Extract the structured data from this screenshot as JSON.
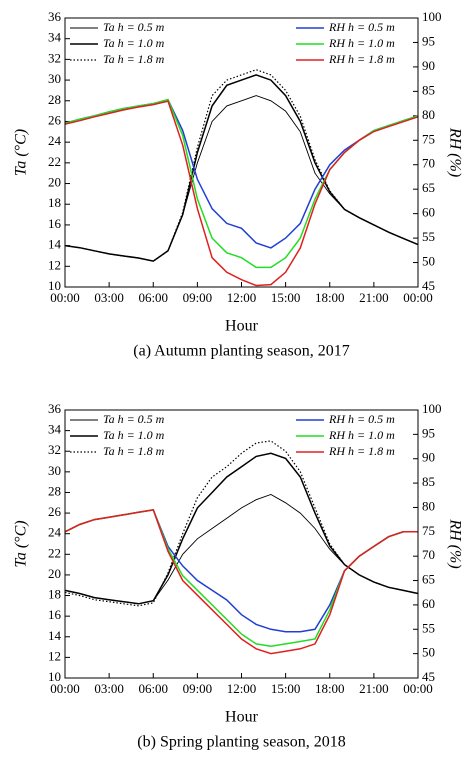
{
  "chart_data": [
    {
      "type": "line",
      "caption": "(a) Autumn planting season, 2017",
      "xlabel": "Hour",
      "ylabel": "Ta (°C)",
      "y2label": "RH (%)",
      "x": [
        0,
        1,
        2,
        3,
        4,
        5,
        6,
        7,
        8,
        9,
        10,
        11,
        12,
        13,
        14,
        15,
        16,
        17,
        18,
        19,
        20,
        21,
        22,
        23,
        24
      ],
      "xlim": [
        0,
        24
      ],
      "xticks": [
        {
          "value": 0,
          "label": "00:00"
        },
        {
          "value": 3,
          "label": "03:00"
        },
        {
          "value": 6,
          "label": "06:00"
        },
        {
          "value": 9,
          "label": "09:00"
        },
        {
          "value": 12,
          "label": "12:00"
        },
        {
          "value": 15,
          "label": "15:00"
        },
        {
          "value": 18,
          "label": "18:00"
        },
        {
          "value": 21,
          "label": "21:00"
        },
        {
          "value": 24,
          "label": "00:00"
        }
      ],
      "ylim": [
        10,
        36
      ],
      "yticks": [
        10,
        12,
        14,
        16,
        18,
        20,
        22,
        24,
        26,
        28,
        30,
        32,
        34,
        36
      ],
      "y2lim": [
        45,
        100
      ],
      "y2ticks": [
        45,
        50,
        55,
        60,
        65,
        70,
        75,
        80,
        85,
        90,
        95,
        100
      ],
      "series": [
        {
          "name": "Ta h = 0.5 m",
          "color": "#000000",
          "line_style": "thin",
          "values": [
            14,
            13.8,
            13.5,
            13.2,
            13,
            12.8,
            12.5,
            13.5,
            17,
            22,
            26,
            27.5,
            28,
            28.5,
            28,
            27,
            25,
            21,
            19,
            17.5,
            16.7,
            16,
            15.3,
            14.7,
            14.1
          ]
        },
        {
          "name": "Ta h = 1.0 m",
          "color": "#000000",
          "line_style": "solid",
          "values": [
            14,
            13.8,
            13.5,
            13.2,
            13,
            12.8,
            12.5,
            13.5,
            17,
            23,
            27.5,
            29.5,
            30,
            30.5,
            30,
            28.5,
            26,
            22,
            19.2,
            17.5,
            16.7,
            16,
            15.3,
            14.7,
            14.1
          ]
        },
        {
          "name": "Ta h = 1.8 m",
          "color": "#000000",
          "line_style": "dotted",
          "values": [
            14,
            13.8,
            13.5,
            13.2,
            13,
            12.8,
            12.5,
            13.5,
            17.2,
            23.5,
            28.5,
            30,
            30.5,
            31,
            30.5,
            29,
            26.5,
            22.3,
            19.3,
            17.5,
            16.7,
            16,
            15.3,
            14.7,
            14.1
          ]
        },
        {
          "name": "RH h = 0.5 m",
          "color": "#1f3fd6",
          "line_style": "solid",
          "axis": "y2",
          "values": [
            78.5,
            79.3,
            80,
            80.8,
            81.5,
            82,
            82.5,
            83.3,
            77,
            67,
            61,
            58,
            57,
            54,
            53,
            55,
            58,
            65,
            70,
            73,
            75,
            77,
            78,
            79,
            80
          ]
        },
        {
          "name": "RH h = 1.0 m",
          "color": "#22dd22",
          "line_style": "solid",
          "axis": "y2",
          "values": [
            78.5,
            79.3,
            80,
            80.8,
            81.5,
            82,
            82.5,
            83.3,
            76,
            63,
            55,
            52,
            51,
            49,
            49,
            51,
            55,
            63,
            69,
            72.5,
            75,
            77,
            78,
            79,
            80
          ]
        },
        {
          "name": "RH h = 1.8 m",
          "color": "#e02020",
          "line_style": "solid",
          "axis": "y2",
          "values": [
            78.3,
            79,
            79.8,
            80.5,
            81.2,
            81.8,
            82.3,
            83,
            74,
            61,
            51,
            48,
            46.5,
            45.3,
            45.5,
            48,
            53,
            62,
            69,
            72.5,
            75,
            76.8,
            77.8,
            78.8,
            79.8
          ]
        }
      ]
    },
    {
      "type": "line",
      "caption": "(b) Spring planting season, 2018",
      "xlabel": "Hour",
      "ylabel": "Ta (°C)",
      "y2label": "RH (%)",
      "x": [
        0,
        1,
        2,
        3,
        4,
        5,
        6,
        7,
        8,
        9,
        10,
        11,
        12,
        13,
        14,
        15,
        16,
        17,
        18,
        19,
        20,
        21,
        22,
        23,
        24
      ],
      "xlim": [
        0,
        24
      ],
      "xticks": [
        {
          "value": 0,
          "label": "00:00"
        },
        {
          "value": 3,
          "label": "03:00"
        },
        {
          "value": 6,
          "label": "06:00"
        },
        {
          "value": 9,
          "label": "09:00"
        },
        {
          "value": 12,
          "label": "12:00"
        },
        {
          "value": 15,
          "label": "15:00"
        },
        {
          "value": 18,
          "label": "18:00"
        },
        {
          "value": 21,
          "label": "21:00"
        },
        {
          "value": 24,
          "label": "00:00"
        }
      ],
      "ylim": [
        10,
        36
      ],
      "yticks": [
        10,
        12,
        14,
        16,
        18,
        20,
        22,
        24,
        26,
        28,
        30,
        32,
        34,
        36
      ],
      "y2lim": [
        45,
        100
      ],
      "y2ticks": [
        45,
        50,
        55,
        60,
        65,
        70,
        75,
        80,
        85,
        90,
        95,
        100
      ],
      "series": [
        {
          "name": "Ta h = 0.5 m",
          "color": "#000000",
          "line_style": "thin",
          "values": [
            18.5,
            18.2,
            17.8,
            17.6,
            17.4,
            17.2,
            17.5,
            19.5,
            22,
            23.5,
            24.5,
            25.5,
            26.5,
            27.3,
            27.8,
            27,
            26,
            24.5,
            22.5,
            21,
            20,
            19.3,
            18.8,
            18.5,
            18.2
          ]
        },
        {
          "name": "Ta h = 1.0 m",
          "color": "#000000",
          "line_style": "solid",
          "values": [
            18.5,
            18.2,
            17.8,
            17.6,
            17.4,
            17.2,
            17.5,
            20,
            23.5,
            26.5,
            28,
            29.5,
            30.5,
            31.5,
            31.8,
            31.3,
            29.5,
            26,
            22.8,
            21,
            20,
            19.3,
            18.8,
            18.5,
            18.2
          ]
        },
        {
          "name": "Ta h = 1.8 m",
          "color": "#000000",
          "line_style": "dotted",
          "values": [
            18.3,
            18,
            17.6,
            17.4,
            17.2,
            17,
            17.3,
            20.2,
            24,
            27.5,
            29.5,
            30.5,
            31.8,
            32.8,
            33,
            32,
            30,
            26.5,
            23,
            21,
            20,
            19.3,
            18.8,
            18.5,
            18.2
          ]
        },
        {
          "name": "RH h = 0.5 m",
          "color": "#1f3fd6",
          "line_style": "solid",
          "axis": "y2",
          "values": [
            75,
            76.5,
            77.5,
            78,
            78.5,
            79,
            79.5,
            72,
            68,
            65,
            63,
            61,
            58,
            56,
            55,
            54.5,
            54.5,
            55,
            60,
            67,
            70,
            72,
            74,
            75,
            75
          ]
        },
        {
          "name": "RH h = 1.0 m",
          "color": "#22dd22",
          "line_style": "solid",
          "axis": "y2",
          "values": [
            75,
            76.5,
            77.5,
            78,
            78.5,
            79,
            79.5,
            71.5,
            66,
            63,
            60,
            57,
            54,
            52,
            51.5,
            52,
            52.5,
            53,
            59,
            67,
            70,
            72,
            74,
            75,
            75
          ]
        },
        {
          "name": "RH h = 1.8 m",
          "color": "#e02020",
          "line_style": "solid",
          "axis": "y2",
          "values": [
            75,
            76.5,
            77.5,
            78,
            78.5,
            79,
            79.5,
            71,
            65,
            62,
            59,
            56,
            53,
            51,
            50,
            50.5,
            51,
            52,
            58,
            67,
            70,
            72,
            74,
            75,
            75
          ]
        }
      ]
    }
  ]
}
